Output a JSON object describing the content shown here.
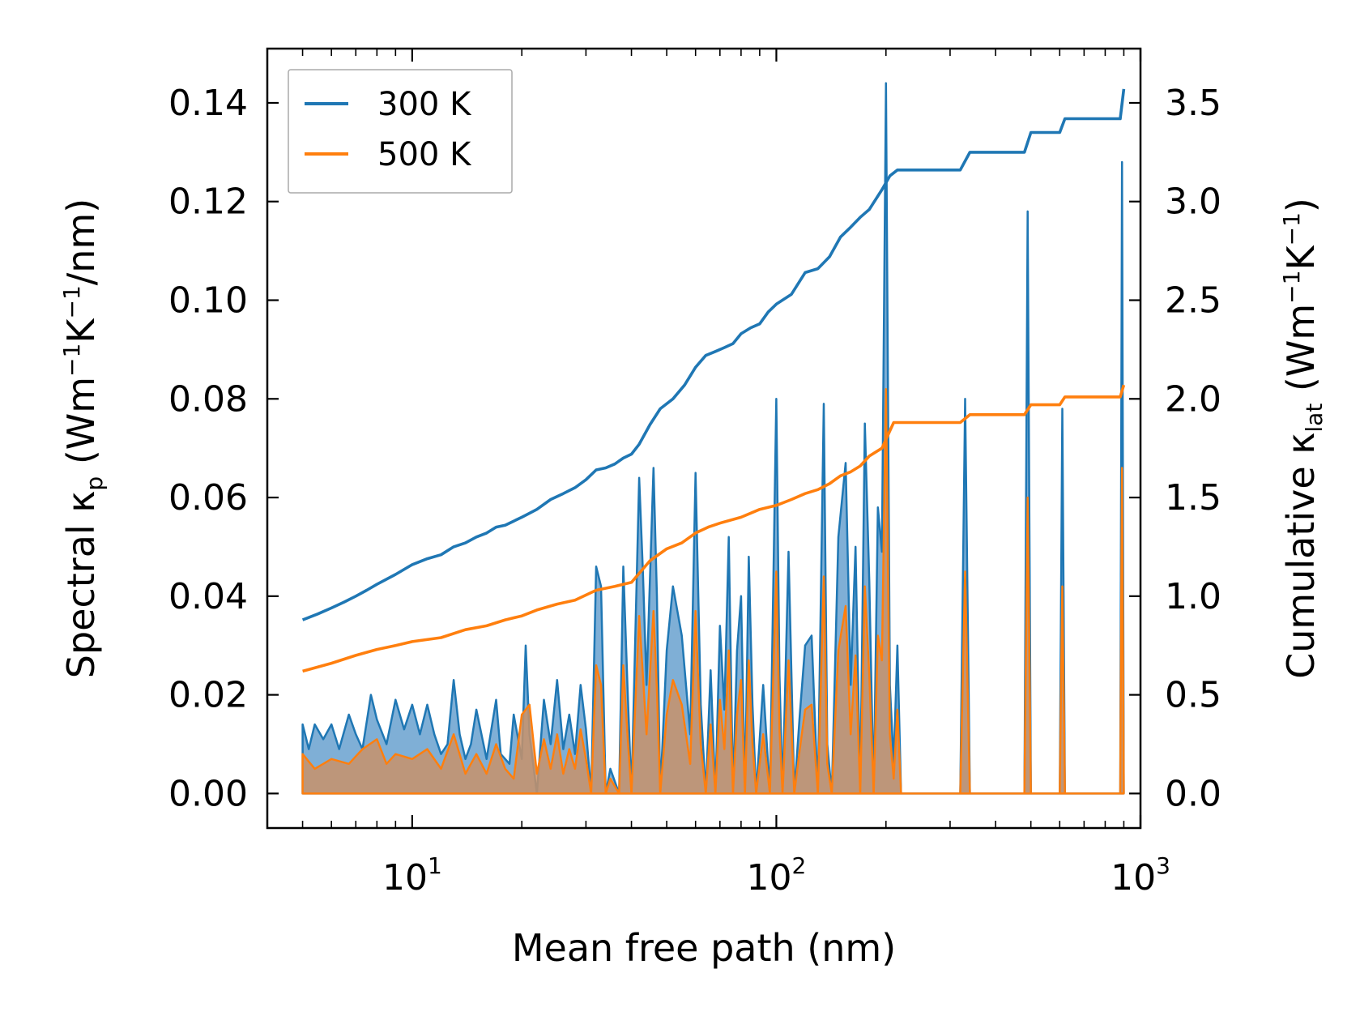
{
  "chart_data": {
    "type": "line",
    "xscale": "log",
    "xlabel": "Mean free path (nm)",
    "xlim": [
      4.0,
      1000
    ],
    "x_tick_labels": [
      {
        "value": 10,
        "base": "10",
        "exp": "1"
      },
      {
        "value": 100,
        "base": "10",
        "exp": "2"
      },
      {
        "value": 1000,
        "base": "10",
        "exp": "3"
      }
    ],
    "y_left": {
      "label_parts": [
        "Spectral κ",
        "p",
        " (Wm",
        "−1",
        "K",
        "−1",
        "/nm)"
      ],
      "lim": [
        -0.007,
        0.151
      ],
      "ticks": [
        0.0,
        0.02,
        0.04,
        0.06,
        0.08,
        0.1,
        0.12,
        0.14
      ],
      "tick_labels": [
        "0.00",
        "0.02",
        "0.04",
        "0.06",
        "0.08",
        "0.10",
        "0.12",
        "0.14"
      ]
    },
    "y_right": {
      "label_parts": [
        "Cumulative κ",
        "lat",
        " (Wm",
        "−1",
        "K",
        "−1",
        ")"
      ],
      "lim": [
        -0.175,
        3.775
      ],
      "ticks": [
        0.0,
        0.5,
        1.0,
        1.5,
        2.0,
        2.5,
        3.0,
        3.5
      ],
      "tick_labels": [
        "0.0",
        "0.5",
        "1.0",
        "1.5",
        "2.0",
        "2.5",
        "3.0",
        "3.5"
      ]
    },
    "legend": {
      "position": "top-left",
      "entries": [
        "300 K",
        "500 K"
      ]
    },
    "colors": {
      "300K": "#1f77b4",
      "500K": "#ff7f0e",
      "300K_fill": "#3a84c0",
      "500K_fill": "#c8926a"
    },
    "series": [
      {
        "name": "300 K",
        "kind": "cumulative",
        "axis": "right",
        "x": [
          5,
          5.5,
          6,
          6.5,
          7,
          7.5,
          8,
          9,
          10,
          11,
          12,
          13,
          14,
          15,
          16,
          17,
          18,
          20,
          22,
          24,
          26,
          28,
          30,
          32,
          34,
          36,
          38,
          40,
          42,
          45,
          48,
          52,
          56,
          60,
          64,
          68,
          72,
          76,
          80,
          85,
          90,
          95,
          100,
          110,
          120,
          130,
          140,
          150,
          160,
          170,
          180,
          195,
          205,
          215,
          230,
          320,
          340,
          480,
          500,
          600,
          620,
          880,
          900
        ],
        "y": [
          0.88,
          0.91,
          0.94,
          0.97,
          1.0,
          1.03,
          1.06,
          1.11,
          1.16,
          1.19,
          1.21,
          1.25,
          1.27,
          1.3,
          1.32,
          1.35,
          1.36,
          1.4,
          1.44,
          1.49,
          1.52,
          1.55,
          1.59,
          1.64,
          1.65,
          1.67,
          1.7,
          1.72,
          1.77,
          1.87,
          1.95,
          2.0,
          2.07,
          2.16,
          2.22,
          2.24,
          2.26,
          2.28,
          2.33,
          2.36,
          2.38,
          2.44,
          2.48,
          2.53,
          2.64,
          2.66,
          2.72,
          2.82,
          2.87,
          2.92,
          2.96,
          3.06,
          3.13,
          3.16,
          3.16,
          3.16,
          3.25,
          3.25,
          3.35,
          3.35,
          3.42,
          3.42,
          3.57
        ]
      },
      {
        "name": "500 K",
        "kind": "cumulative",
        "axis": "right",
        "x": [
          5,
          6,
          7,
          8,
          9,
          10,
          12,
          14,
          16,
          18,
          20,
          22,
          25,
          28,
          32,
          36,
          40,
          45,
          50,
          55,
          60,
          65,
          70,
          80,
          90,
          100,
          110,
          120,
          130,
          140,
          150,
          160,
          170,
          180,
          195,
          210,
          230,
          320,
          340,
          480,
          500,
          600,
          620,
          880,
          900
        ],
        "y": [
          0.62,
          0.66,
          0.7,
          0.73,
          0.75,
          0.77,
          0.79,
          0.83,
          0.85,
          0.88,
          0.9,
          0.93,
          0.96,
          0.98,
          1.03,
          1.05,
          1.07,
          1.18,
          1.24,
          1.27,
          1.32,
          1.35,
          1.37,
          1.4,
          1.44,
          1.46,
          1.49,
          1.52,
          1.54,
          1.57,
          1.61,
          1.63,
          1.66,
          1.71,
          1.75,
          1.88,
          1.88,
          1.88,
          1.92,
          1.92,
          1.97,
          1.97,
          2.01,
          2.01,
          2.07
        ]
      },
      {
        "name": "300 K spectral",
        "kind": "spectral",
        "axis": "left",
        "x": [
          5,
          5.2,
          5.4,
          5.7,
          6,
          6.3,
          6.7,
          7,
          7.3,
          7.7,
          8,
          8.5,
          9,
          9.5,
          10,
          10.5,
          11,
          11.5,
          12,
          12.5,
          13,
          13.5,
          14,
          14.5,
          15,
          16,
          17,
          17.5,
          18,
          18.5,
          19,
          20,
          20.5,
          21,
          22,
          23,
          24,
          25,
          26,
          27,
          28,
          29,
          30,
          31,
          32,
          33,
          34,
          35,
          37,
          38,
          39,
          40,
          42,
          43,
          44,
          46,
          47,
          48,
          50,
          52,
          55,
          58,
          60,
          62,
          64,
          66,
          68,
          70,
          72,
          74,
          76,
          78,
          80,
          82,
          84,
          86,
          88,
          92,
          96,
          100,
          102,
          104,
          108,
          112,
          116,
          120,
          125,
          130,
          135,
          138,
          142,
          148,
          155,
          160,
          165,
          170,
          175,
          180,
          185,
          190,
          195,
          200,
          205,
          210,
          215,
          220,
          230,
          320,
          330,
          340,
          480,
          490,
          500,
          600,
          610,
          620,
          880,
          890,
          900
        ],
        "y": [
          0.014,
          0.009,
          0.014,
          0.011,
          0.014,
          0.009,
          0.016,
          0.012,
          0.009,
          0.02,
          0.015,
          0.01,
          0.019,
          0.013,
          0.018,
          0.012,
          0.018,
          0.012,
          0.008,
          0.01,
          0.023,
          0.012,
          0.007,
          0.01,
          0.017,
          0.007,
          0.019,
          0.008,
          0.007,
          0.006,
          0.016,
          0.007,
          0.03,
          0.012,
          0.0,
          0.019,
          0.01,
          0.023,
          0.009,
          0.016,
          0.008,
          0.022,
          0.013,
          0.0,
          0.046,
          0.042,
          0.0,
          0.005,
          0.0,
          0.046,
          0.022,
          0.0,
          0.064,
          0.045,
          0.022,
          0.066,
          0.04,
          0.0,
          0.029,
          0.042,
          0.032,
          0.012,
          0.065,
          0.018,
          0.0,
          0.025,
          0.0,
          0.034,
          0.017,
          0.052,
          0.0,
          0.029,
          0.04,
          0.0,
          0.048,
          0.018,
          0.0,
          0.022,
          0.0,
          0.08,
          0.024,
          0.0,
          0.049,
          0.0,
          0.016,
          0.03,
          0.032,
          0.0,
          0.079,
          0.01,
          0.0,
          0.052,
          0.067,
          0.022,
          0.05,
          0.0,
          0.075,
          0.043,
          0.0,
          0.058,
          0.049,
          0.144,
          0.022,
          0.006,
          0.03,
          0.0,
          0.0,
          0.0,
          0.08,
          0.0,
          0.0,
          0.118,
          0.0,
          0.0,
          0.078,
          0.0,
          0.0,
          0.128,
          0.0
        ]
      },
      {
        "name": "500 K spectral",
        "kind": "spectral",
        "axis": "left",
        "x": [
          5,
          5.4,
          6,
          6.7,
          7.3,
          8,
          8.5,
          9,
          10,
          11,
          12,
          13,
          14,
          15,
          16,
          17,
          18,
          19,
          20,
          21,
          22,
          23,
          24,
          25,
          26,
          27,
          28,
          29,
          30,
          31,
          32,
          33,
          34,
          35,
          37,
          38,
          39,
          40,
          42,
          43,
          44,
          46,
          47,
          48,
          50,
          52,
          55,
          58,
          60,
          62,
          64,
          66,
          68,
          70,
          72,
          74,
          76,
          78,
          80,
          82,
          84,
          86,
          88,
          92,
          96,
          100,
          102,
          104,
          108,
          112,
          116,
          120,
          125,
          130,
          135,
          138,
          142,
          148,
          155,
          160,
          165,
          170,
          175,
          180,
          185,
          190,
          195,
          200,
          205,
          210,
          215,
          220,
          230,
          320,
          330,
          340,
          480,
          490,
          500,
          600,
          610,
          620,
          880,
          890,
          900
        ],
        "y": [
          0.008,
          0.005,
          0.007,
          0.006,
          0.009,
          0.011,
          0.006,
          0.008,
          0.007,
          0.009,
          0.005,
          0.012,
          0.004,
          0.008,
          0.004,
          0.01,
          0.005,
          0.003,
          0.016,
          0.018,
          0.004,
          0.011,
          0.005,
          0.012,
          0.004,
          0.009,
          0.005,
          0.013,
          0.007,
          0.0,
          0.026,
          0.022,
          0.0,
          0.003,
          0.0,
          0.026,
          0.012,
          0.0,
          0.036,
          0.024,
          0.012,
          0.037,
          0.021,
          0.0,
          0.016,
          0.023,
          0.018,
          0.006,
          0.037,
          0.01,
          0.0,
          0.014,
          0.0,
          0.019,
          0.009,
          0.029,
          0.0,
          0.016,
          0.023,
          0.0,
          0.027,
          0.01,
          0.0,
          0.012,
          0.0,
          0.045,
          0.013,
          0.0,
          0.027,
          0.0,
          0.009,
          0.017,
          0.018,
          0.0,
          0.044,
          0.006,
          0.0,
          0.029,
          0.038,
          0.012,
          0.028,
          0.0,
          0.042,
          0.024,
          0.0,
          0.032,
          0.027,
          0.082,
          0.012,
          0.003,
          0.017,
          0.0,
          0.0,
          0.0,
          0.045,
          0.0,
          0.0,
          0.06,
          0.0,
          0.0,
          0.042,
          0.0,
          0.0,
          0.066,
          0.0
        ]
      }
    ]
  }
}
